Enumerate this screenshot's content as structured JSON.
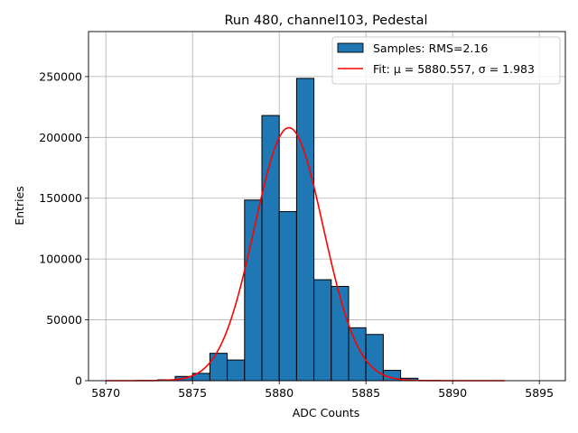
{
  "chart_data": {
    "type": "bar",
    "title": "Run 480, channel103, Pedestal",
    "xlabel": "ADC Counts",
    "ylabel": "Entries",
    "xlim": [
      5869,
      5896.5
    ],
    "ylim": [
      0,
      287000
    ],
    "xticks": [
      5870,
      5875,
      5880,
      5885,
      5890,
      5895
    ],
    "yticks": [
      0,
      50000,
      100000,
      150000,
      200000,
      250000
    ],
    "grid": true,
    "legend_position": "top-right",
    "histogram": {
      "name": "Samples: RMS=2.16",
      "color": "#1f77b4",
      "edgecolor": "#000000",
      "bin_edges": [
        5873,
        5874,
        5875,
        5876,
        5877,
        5878,
        5879,
        5880,
        5881,
        5882,
        5883,
        5884,
        5885,
        5886,
        5887,
        5888
      ],
      "counts": [
        700,
        3500,
        6000,
        22500,
        17000,
        148500,
        218000,
        139000,
        248500,
        83000,
        77500,
        43500,
        38000,
        8500,
        2000
      ]
    },
    "fit": {
      "name": "Fit: μ = 5880.557, σ = 1.983",
      "color": "#ff0000",
      "type": "gaussian",
      "mu": 5880.557,
      "sigma": 1.983,
      "amplitude": 208000,
      "x_range": [
        5870,
        5893
      ]
    }
  }
}
